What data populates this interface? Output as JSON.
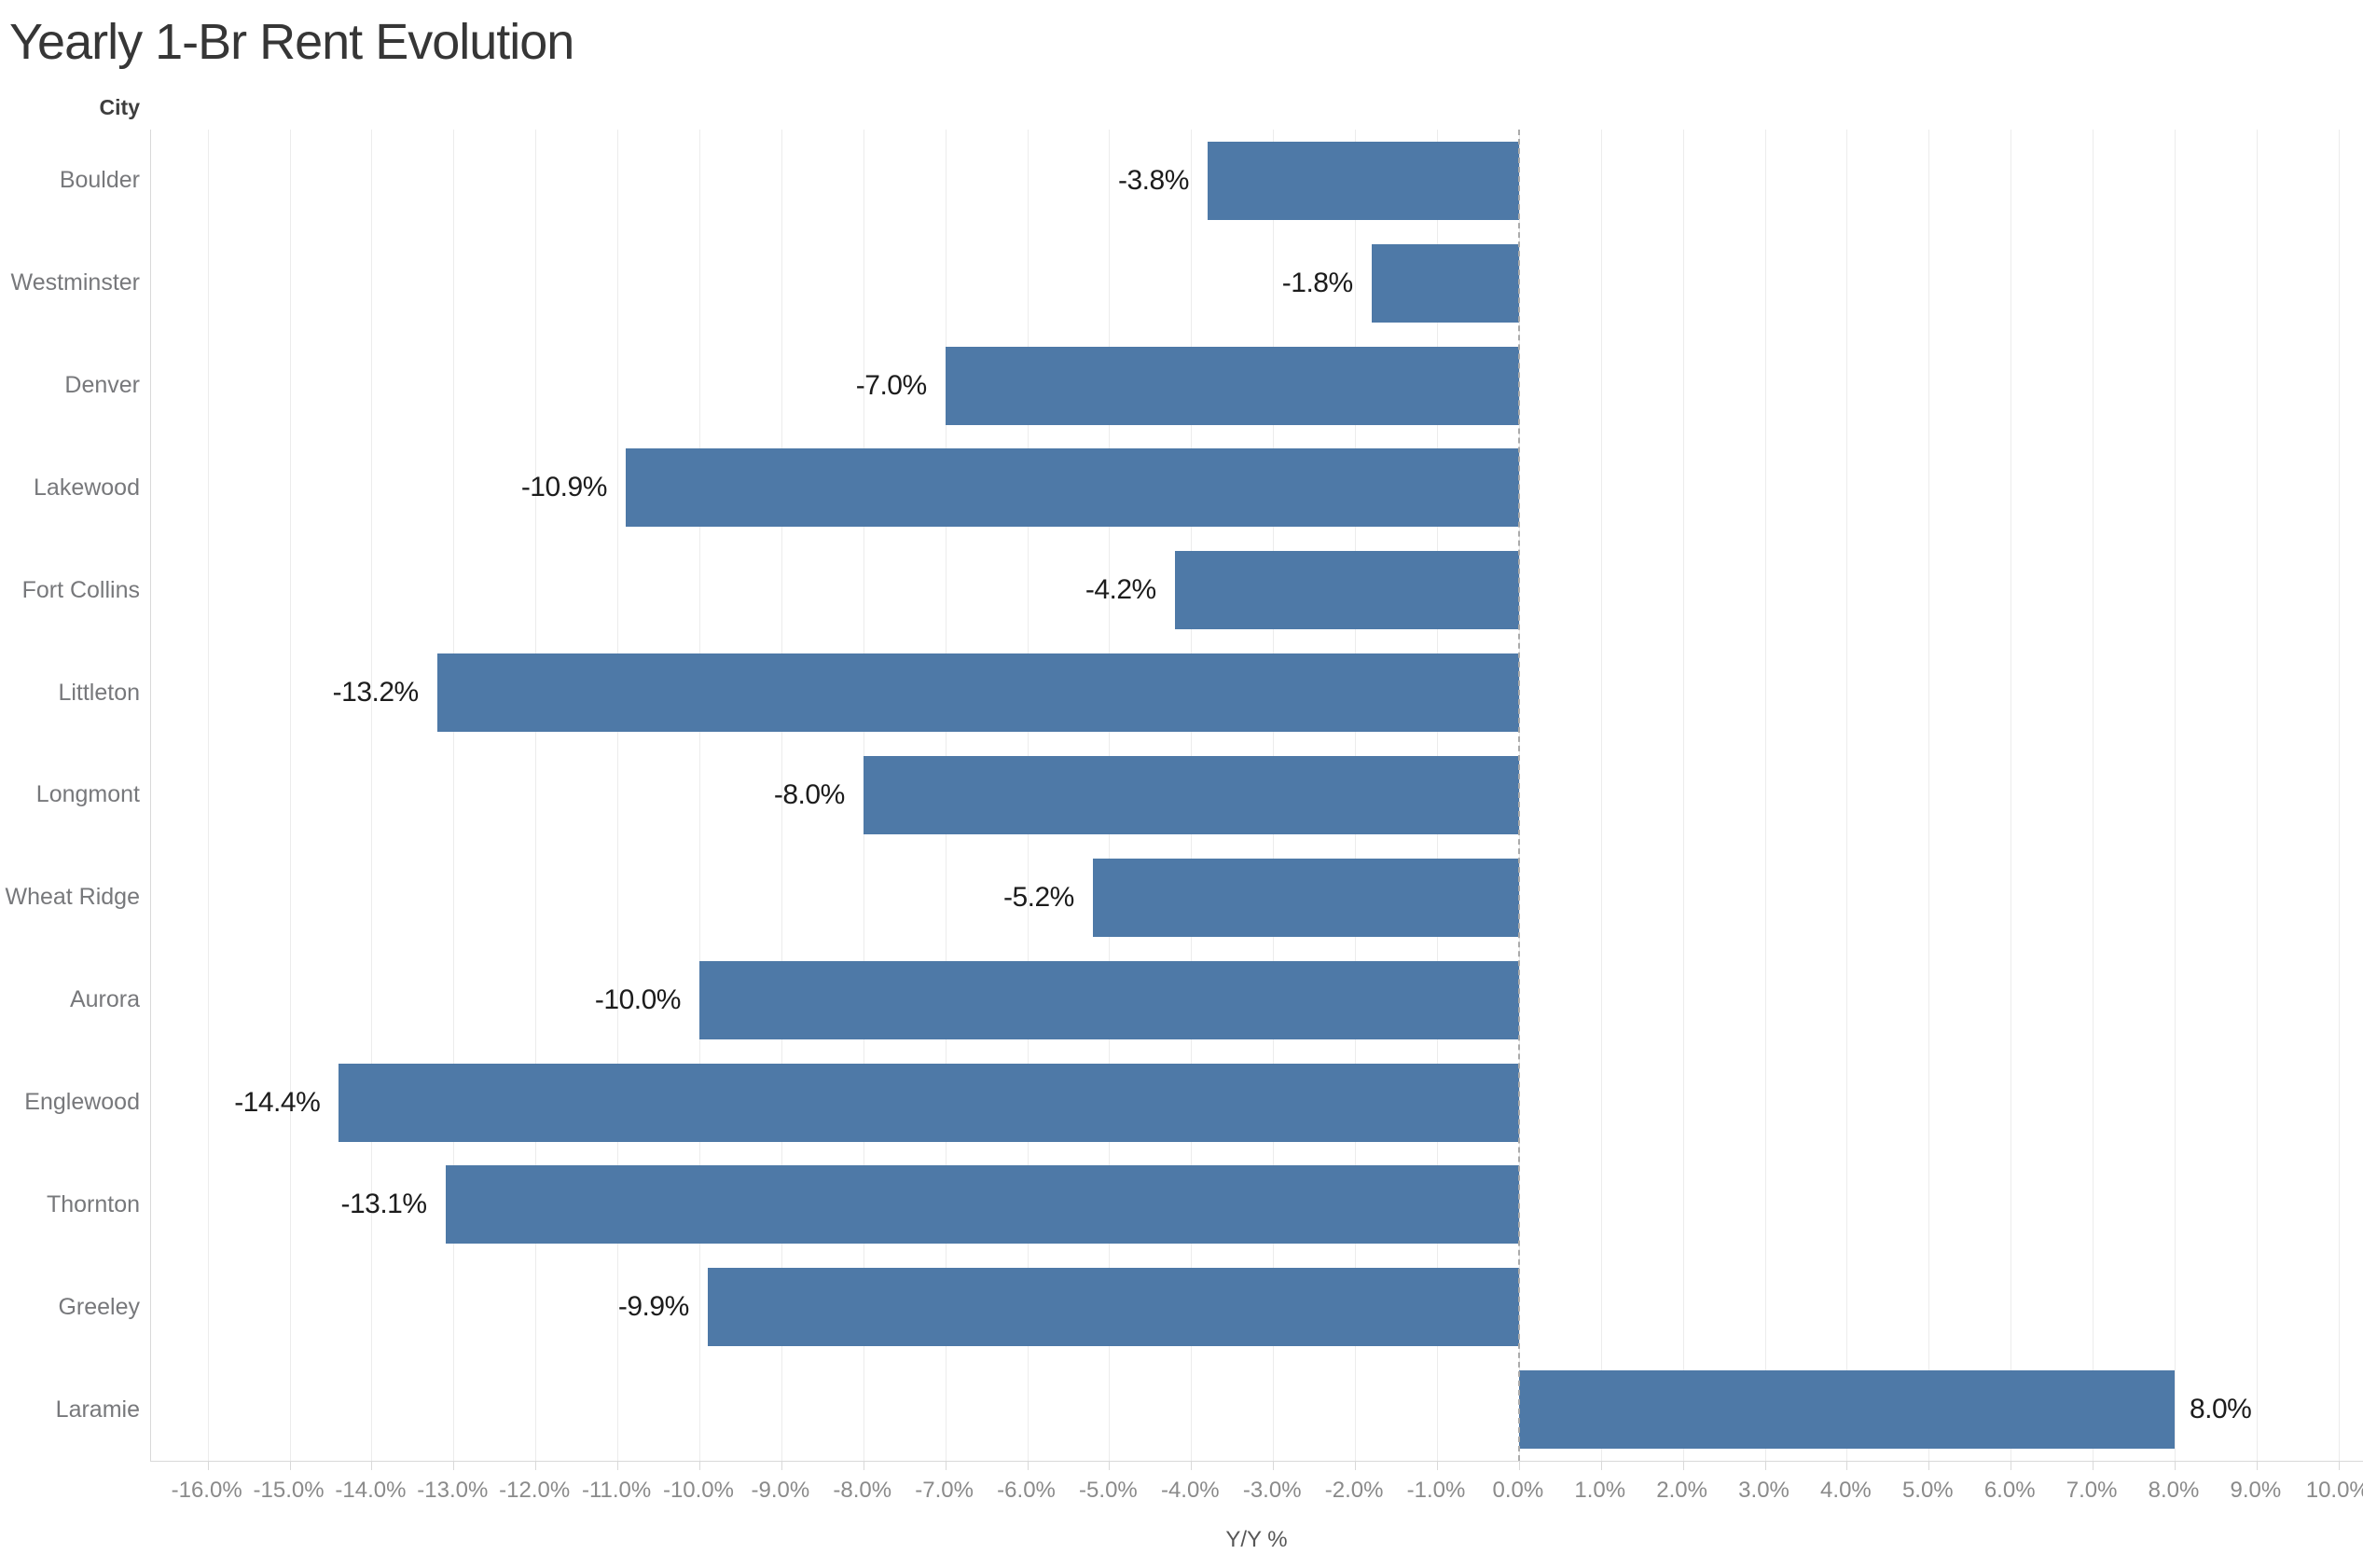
{
  "header": {
    "title": "Yearly 1-Br Rent Evolution"
  },
  "axes": {
    "y_title": "City",
    "x_title": "Y/Y %",
    "x_tick_labels": [
      "-16.0%",
      "-15.0%",
      "-14.0%",
      "-13.0%",
      "-12.0%",
      "-11.0%",
      "-10.0%",
      "-9.0%",
      "-8.0%",
      "-7.0%",
      "-6.0%",
      "-5.0%",
      "-4.0%",
      "-3.0%",
      "-2.0%",
      "-1.0%",
      "0.0%",
      "1.0%",
      "2.0%",
      "3.0%",
      "4.0%",
      "5.0%",
      "6.0%",
      "7.0%",
      "8.0%",
      "9.0%",
      "10.0%"
    ],
    "x_tick_values": [
      -16,
      -15,
      -14,
      -13,
      -12,
      -11,
      -10,
      -9,
      -8,
      -7,
      -6,
      -5,
      -4,
      -3,
      -2,
      -1,
      0,
      1,
      2,
      3,
      4,
      5,
      6,
      7,
      8,
      9,
      10
    ]
  },
  "colors": {
    "bar": "#4e79a7",
    "gridline": "#ececec",
    "zero_line": "#ababab",
    "axis_border": "#d9d9d9",
    "tick_label": "#8a8a8a",
    "category_label": "#77787b",
    "value_label": "#1c1c1c",
    "title": "#363636"
  },
  "chart_data": {
    "type": "bar",
    "orientation": "horizontal",
    "title": "Yearly 1-Br Rent Evolution",
    "xlabel": "Y/Y %",
    "ylabel": "City",
    "categories": [
      "Boulder",
      "Westminster",
      "Denver",
      "Lakewood",
      "Fort Collins",
      "Littleton",
      "Longmont",
      "Wheat Ridge",
      "Aurora",
      "Englewood",
      "Thornton",
      "Greeley",
      "Laramie"
    ],
    "values": [
      -3.8,
      -1.8,
      -7.0,
      -10.9,
      -4.2,
      -13.2,
      -8.0,
      -5.2,
      -10.0,
      -14.4,
      -13.1,
      -9.9,
      8.0
    ],
    "value_labels": [
      "-3.8%",
      "-1.8%",
      "-7.0%",
      "-10.9%",
      "-4.2%",
      "-13.2%",
      "-8.0%",
      "-5.2%",
      "-10.0%",
      "-14.4%",
      "-13.1%",
      "-9.9%",
      "8.0%"
    ],
    "xlim": [
      -16.69,
      10.31
    ],
    "x_tick_step": 1,
    "grid": true,
    "legend": false,
    "bar_color": "#4e79a7",
    "zero_line_style": "dashed"
  }
}
